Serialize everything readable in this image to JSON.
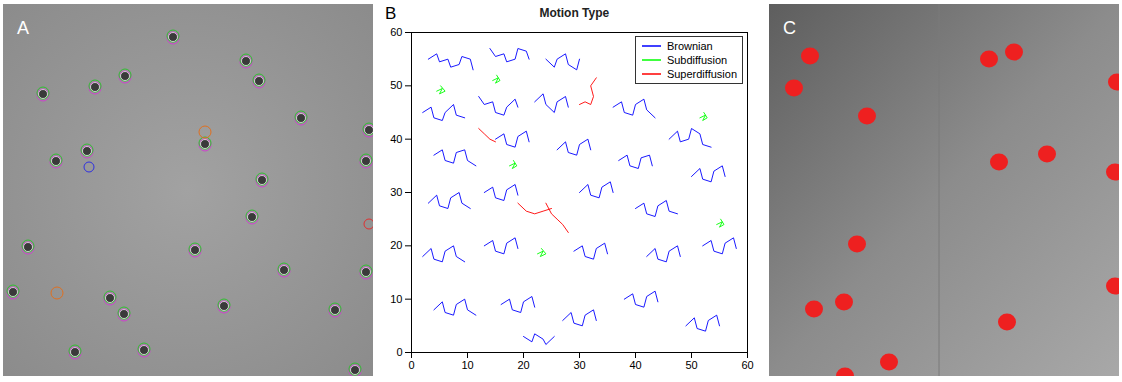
{
  "panel_labels": [
    "A",
    "B",
    "C"
  ],
  "chart_data": {
    "type": "line",
    "title": "Motion Type",
    "xlim": [
      0,
      60
    ],
    "ylim": [
      0,
      60
    ],
    "xticks": [
      0,
      10,
      20,
      30,
      40,
      50,
      60
    ],
    "yticks": [
      0,
      10,
      20,
      30,
      40,
      50,
      60
    ],
    "legend": "northeast",
    "series": [
      {
        "name": "Brownian",
        "color": "#0000ff",
        "tracks": [
          [
            [
              3,
              55
            ],
            [
              4.5,
              56
            ],
            [
              5,
              54.5
            ],
            [
              6.5,
              55
            ],
            [
              7,
              53.5
            ],
            [
              8.5,
              54
            ],
            [
              9,
              55.5
            ],
            [
              10.5,
              55
            ],
            [
              11,
              53
            ]
          ],
          [
            [
              14,
              57
            ],
            [
              15,
              55.5
            ],
            [
              16.5,
              56
            ],
            [
              17,
              54.5
            ],
            [
              18.5,
              55
            ],
            [
              19,
              57
            ],
            [
              20.5,
              56.5
            ],
            [
              21,
              55
            ]
          ],
          [
            [
              24,
              55
            ],
            [
              25.5,
              53.5
            ],
            [
              26,
              55
            ],
            [
              27.5,
              56
            ],
            [
              28,
              54
            ],
            [
              29.5,
              53
            ],
            [
              30,
              55
            ]
          ],
          [
            [
              2,
              45
            ],
            [
              3.5,
              46
            ],
            [
              4,
              44
            ],
            [
              5.5,
              43.5
            ],
            [
              6,
              45
            ],
            [
              7.5,
              46.5
            ],
            [
              8,
              44.5
            ],
            [
              9.5,
              44
            ]
          ],
          [
            [
              12,
              48
            ],
            [
              13,
              46.5
            ],
            [
              14.5,
              47
            ],
            [
              15,
              45
            ],
            [
              16.5,
              44.5
            ],
            [
              17,
              46
            ],
            [
              18.5,
              47.5
            ],
            [
              19,
              46
            ]
          ],
          [
            [
              22,
              47
            ],
            [
              23.5,
              48.5
            ],
            [
              24,
              46.5
            ],
            [
              25.5,
              45
            ],
            [
              26,
              47
            ],
            [
              27.5,
              48
            ],
            [
              28,
              46
            ]
          ],
          [
            [
              36,
              46
            ],
            [
              37.5,
              47
            ],
            [
              38,
              45
            ],
            [
              39.5,
              44.5
            ],
            [
              40,
              46.5
            ],
            [
              41.5,
              47.5
            ],
            [
              42,
              45.5
            ],
            [
              43.5,
              44
            ]
          ],
          [
            [
              46,
              40
            ],
            [
              47.5,
              41.5
            ],
            [
              48,
              39.5
            ],
            [
              49.5,
              40
            ],
            [
              50,
              42
            ],
            [
              51.5,
              41
            ],
            [
              52,
              39
            ],
            [
              53.5,
              38.5
            ]
          ],
          [
            [
              4,
              37
            ],
            [
              5.5,
              38
            ],
            [
              6,
              36
            ],
            [
              7.5,
              35.5
            ],
            [
              8,
              37.5
            ],
            [
              9.5,
              38
            ],
            [
              10,
              36
            ],
            [
              11.5,
              35
            ]
          ],
          [
            [
              15,
              40
            ],
            [
              16.5,
              41
            ],
            [
              17,
              39
            ],
            [
              18.5,
              38.5
            ],
            [
              19,
              40.5
            ],
            [
              20.5,
              41.5
            ],
            [
              21,
              39.5
            ]
          ],
          [
            [
              26,
              38
            ],
            [
              27.5,
              39.5
            ],
            [
              28,
              37.5
            ],
            [
              29.5,
              37
            ],
            [
              30,
              39
            ],
            [
              31.5,
              40
            ],
            [
              32,
              38
            ]
          ],
          [
            [
              37,
              36
            ],
            [
              38.5,
              37
            ],
            [
              39,
              35
            ],
            [
              40.5,
              34.5
            ],
            [
              41,
              36.5
            ],
            [
              42.5,
              37
            ],
            [
              43,
              35
            ]
          ],
          [
            [
              50,
              33
            ],
            [
              51.5,
              34.5
            ],
            [
              52,
              32.5
            ],
            [
              53.5,
              32
            ],
            [
              54,
              34
            ],
            [
              55.5,
              35
            ],
            [
              56,
              33
            ]
          ],
          [
            [
              3,
              28
            ],
            [
              4.5,
              29.5
            ],
            [
              5,
              27.5
            ],
            [
              6.5,
              27
            ],
            [
              7,
              29
            ],
            [
              8.5,
              30
            ],
            [
              9,
              28
            ],
            [
              10.5,
              27
            ]
          ],
          [
            [
              13,
              30
            ],
            [
              14.5,
              31
            ],
            [
              15,
              29
            ],
            [
              16.5,
              28.5
            ],
            [
              17,
              30.5
            ],
            [
              18.5,
              31.5
            ],
            [
              19,
              29.5
            ]
          ],
          [
            [
              30,
              30
            ],
            [
              31.5,
              31.5
            ],
            [
              32,
              29.5
            ],
            [
              33.5,
              29
            ],
            [
              34,
              31
            ],
            [
              35.5,
              32
            ],
            [
              36,
              30
            ]
          ],
          [
            [
              40,
              27
            ],
            [
              41.5,
              28
            ],
            [
              42,
              26
            ],
            [
              43.5,
              25.5
            ],
            [
              44,
              27.5
            ],
            [
              45.5,
              28.5
            ],
            [
              46,
              26.5
            ],
            [
              47.5,
              26
            ]
          ],
          [
            [
              2,
              18
            ],
            [
              3.5,
              19.5
            ],
            [
              4,
              17.5
            ],
            [
              5.5,
              17
            ],
            [
              6,
              19
            ],
            [
              7.5,
              20
            ],
            [
              8,
              18
            ],
            [
              9.5,
              17
            ]
          ],
          [
            [
              13,
              20
            ],
            [
              14.5,
              21
            ],
            [
              15,
              19
            ],
            [
              16.5,
              18.5
            ],
            [
              17,
              20.5
            ],
            [
              18.5,
              21.5
            ],
            [
              19,
              19.5
            ]
          ],
          [
            [
              29,
              19
            ],
            [
              30.5,
              20
            ],
            [
              31,
              18
            ],
            [
              32.5,
              17.5
            ],
            [
              33,
              19.5
            ],
            [
              34.5,
              20.5
            ],
            [
              35,
              18.5
            ]
          ],
          [
            [
              42,
              18
            ],
            [
              43.5,
              19.5
            ],
            [
              44,
              17.5
            ],
            [
              45.5,
              17
            ],
            [
              46,
              19
            ],
            [
              47.5,
              20
            ],
            [
              48,
              18
            ]
          ],
          [
            [
              52,
              20
            ],
            [
              53.5,
              21
            ],
            [
              54,
              19
            ],
            [
              55.5,
              18.5
            ],
            [
              56,
              20.5
            ],
            [
              57.5,
              21.5
            ],
            [
              58,
              19.5
            ]
          ],
          [
            [
              4,
              8
            ],
            [
              5.5,
              9.5
            ],
            [
              6,
              7.5
            ],
            [
              7.5,
              7
            ],
            [
              8,
              9
            ],
            [
              9.5,
              10
            ],
            [
              10,
              8
            ],
            [
              11.5,
              7
            ]
          ],
          [
            [
              16,
              9
            ],
            [
              17.5,
              10
            ],
            [
              18,
              8
            ],
            [
              19.5,
              7.5
            ],
            [
              20,
              9.5
            ],
            [
              21.5,
              10.5
            ],
            [
              22,
              8.5
            ]
          ],
          [
            [
              27,
              6
            ],
            [
              28.5,
              7.5
            ],
            [
              29,
              5.5
            ],
            [
              30.5,
              5
            ],
            [
              31,
              7
            ],
            [
              32.5,
              8
            ],
            [
              33,
              6
            ]
          ],
          [
            [
              38,
              10
            ],
            [
              39.5,
              11
            ],
            [
              40,
              9
            ],
            [
              41.5,
              8.5
            ],
            [
              42,
              10.5
            ],
            [
              43.5,
              11.5
            ],
            [
              44,
              9.5
            ]
          ],
          [
            [
              49,
              5
            ],
            [
              50.5,
              6.5
            ],
            [
              51,
              4.5
            ],
            [
              52.5,
              4
            ],
            [
              53,
              6
            ],
            [
              54.5,
              7
            ],
            [
              55,
              5
            ]
          ],
          [
            [
              20,
              3
            ],
            [
              21.5,
              2
            ],
            [
              22,
              3.5
            ],
            [
              23.5,
              2.5
            ],
            [
              24,
              1.5
            ],
            [
              25.5,
              3
            ]
          ]
        ]
      },
      {
        "name": "Subdiffusion",
        "color": "#00ff00",
        "tracks": [
          [
            [
              4.5,
              49
            ],
            [
              5.5,
              49.5
            ],
            [
              5,
              48.5
            ],
            [
              6,
              49
            ],
            [
              5.2,
              50
            ]
          ],
          [
            [
              14.5,
              51
            ],
            [
              15.5,
              51.5
            ],
            [
              15,
              50.5
            ],
            [
              15.8,
              51
            ],
            [
              15.2,
              52
            ]
          ],
          [
            [
              17.5,
              35
            ],
            [
              18.5,
              35.5
            ],
            [
              18,
              34.5
            ],
            [
              18.8,
              35
            ],
            [
              18.2,
              36
            ]
          ],
          [
            [
              22.5,
              18.5
            ],
            [
              23.5,
              19
            ],
            [
              23,
              18
            ],
            [
              24,
              18.5
            ],
            [
              23.2,
              19.5
            ]
          ],
          [
            [
              51.5,
              44
            ],
            [
              52.5,
              44.5
            ],
            [
              52,
              43.5
            ],
            [
              52.8,
              44
            ],
            [
              52.2,
              45
            ]
          ],
          [
            [
              54.5,
              24
            ],
            [
              55.5,
              24.5
            ],
            [
              55,
              23.5
            ],
            [
              55.8,
              24
            ],
            [
              55.2,
              25
            ]
          ]
        ]
      },
      {
        "name": "Superdiffusion",
        "color": "#ff0000",
        "tracks": [
          [
            [
              30,
              46.5
            ],
            [
              31,
              47
            ],
            [
              32,
              46.5
            ],
            [
              32.5,
              48
            ],
            [
              32,
              50
            ],
            [
              33,
              51.5
            ]
          ],
          [
            [
              12,
              42
            ],
            [
              13,
              41
            ],
            [
              14,
              40
            ],
            [
              15,
              39.5
            ]
          ],
          [
            [
              19,
              28
            ],
            [
              20.5,
              26.5
            ],
            [
              22,
              26
            ],
            [
              23.5,
              26.5
            ],
            [
              25,
              27
            ]
          ],
          [
            [
              24,
              28
            ],
            [
              25,
              26
            ],
            [
              26,
              25
            ],
            [
              27,
              24
            ],
            [
              28,
              22.5
            ]
          ]
        ]
      }
    ]
  }
}
